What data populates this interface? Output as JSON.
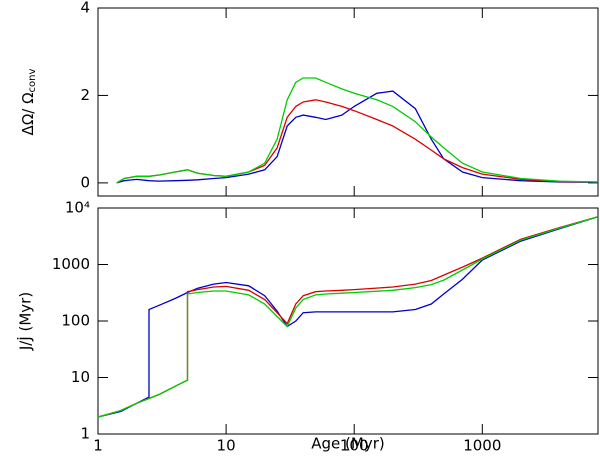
{
  "chart_data": [
    {
      "type": "line",
      "ylabel": "ΔΩ/ Ω",
      "ylabel_sub": "conv",
      "ylim": [
        -0.3,
        4
      ],
      "yticks": [
        0,
        2,
        4
      ],
      "series": [
        {
          "name": "blue",
          "color": "#0000cc",
          "x": [
            1.4,
            1.6,
            2,
            2.5,
            3,
            4,
            5,
            6,
            8,
            10,
            15,
            20,
            25,
            30,
            35,
            40,
            50,
            60,
            80,
            100,
            150,
            200,
            300,
            400,
            500,
            700,
            1000,
            2000,
            4000,
            8000
          ],
          "values": [
            0,
            0.05,
            0.08,
            0.05,
            0.04,
            0.05,
            0.06,
            0.07,
            0.1,
            0.12,
            0.2,
            0.3,
            0.6,
            1.3,
            1.5,
            1.55,
            1.5,
            1.45,
            1.55,
            1.75,
            2.05,
            2.1,
            1.7,
            1.0,
            0.55,
            0.25,
            0.12,
            0.05,
            0.02,
            0.01
          ]
        },
        {
          "name": "red",
          "color": "#dd0000",
          "x": [
            1.4,
            1.6,
            2,
            2.5,
            3,
            4,
            5,
            6,
            8,
            10,
            15,
            20,
            25,
            30,
            35,
            40,
            50,
            60,
            80,
            100,
            150,
            200,
            300,
            400,
            500,
            700,
            1000,
            2000,
            4000,
            8000
          ],
          "values": [
            0,
            0.1,
            0.15,
            0.15,
            0.18,
            0.25,
            0.3,
            0.22,
            0.17,
            0.15,
            0.25,
            0.4,
            0.8,
            1.5,
            1.75,
            1.85,
            1.9,
            1.85,
            1.75,
            1.65,
            1.45,
            1.3,
            1.0,
            0.75,
            0.55,
            0.35,
            0.2,
            0.08,
            0.03,
            0.02
          ]
        },
        {
          "name": "green",
          "color": "#00cc00",
          "x": [
            1.4,
            1.6,
            2,
            2.5,
            3,
            4,
            5,
            6,
            8,
            10,
            15,
            20,
            25,
            30,
            35,
            40,
            50,
            60,
            80,
            100,
            150,
            200,
            300,
            400,
            500,
            700,
            1000,
            2000,
            4000,
            8000
          ],
          "values": [
            0,
            0.1,
            0.15,
            0.15,
            0.18,
            0.25,
            0.3,
            0.22,
            0.17,
            0.15,
            0.25,
            0.45,
            1.0,
            1.9,
            2.3,
            2.4,
            2.4,
            2.3,
            2.15,
            2.05,
            1.9,
            1.75,
            1.4,
            1.05,
            0.8,
            0.45,
            0.25,
            0.1,
            0.04,
            0.02
          ]
        }
      ]
    },
    {
      "type": "line",
      "log_y": true,
      "log_x": true,
      "xlabel": "Age (Myr)",
      "ylabel": "J/J̇  (Myr)",
      "xlim": [
        1,
        8000
      ],
      "xticks": [
        1,
        10,
        100,
        1000
      ],
      "ylim": [
        1,
        10000
      ],
      "yticks": [
        1,
        10,
        100,
        1000,
        {
          "value": 10000,
          "label": "10⁴"
        }
      ],
      "series": [
        {
          "name": "blue",
          "color": "#0000cc",
          "x": [
            1,
            1.5,
            2,
            2.5,
            2.5,
            3,
            4,
            5,
            6,
            8,
            10,
            15,
            20,
            25,
            30,
            35,
            40,
            50,
            60,
            80,
            100,
            200,
            300,
            400,
            500,
            700,
            1000,
            2000,
            4000,
            8000
          ],
          "values": [
            2,
            2.5,
            3.5,
            4.5,
            160,
            190,
            250,
            320,
            380,
            450,
            480,
            420,
            280,
            150,
            80,
            100,
            140,
            145,
            145,
            145,
            145,
            145,
            160,
            200,
            300,
            550,
            1200,
            2600,
            4300,
            7000
          ]
        },
        {
          "name": "red",
          "color": "#dd0000",
          "x": [
            1,
            1.5,
            2,
            3,
            4,
            5,
            5,
            6,
            8,
            10,
            15,
            20,
            25,
            30,
            35,
            40,
            50,
            60,
            80,
            100,
            200,
            300,
            400,
            500,
            700,
            1000,
            2000,
            4000,
            8000
          ],
          "values": [
            2,
            2.6,
            3.5,
            5,
            7,
            9,
            330,
            360,
            400,
            410,
            350,
            240,
            140,
            90,
            200,
            280,
            330,
            340,
            350,
            360,
            400,
            450,
            520,
            650,
            900,
            1300,
            2800,
            4500,
            7000
          ]
        },
        {
          "name": "green",
          "color": "#00cc00",
          "x": [
            1,
            1.5,
            2,
            3,
            4,
            5,
            5,
            6,
            8,
            10,
            15,
            20,
            25,
            30,
            35,
            40,
            50,
            60,
            80,
            100,
            200,
            300,
            400,
            500,
            700,
            1000,
            2000,
            4000,
            8000
          ],
          "values": [
            2,
            2.6,
            3.5,
            5,
            7,
            9,
            300,
            320,
            340,
            340,
            290,
            200,
            120,
            80,
            170,
            240,
            290,
            300,
            310,
            320,
            350,
            390,
            440,
            530,
            800,
            1250,
            2700,
            4400,
            7000
          ]
        }
      ]
    }
  ]
}
